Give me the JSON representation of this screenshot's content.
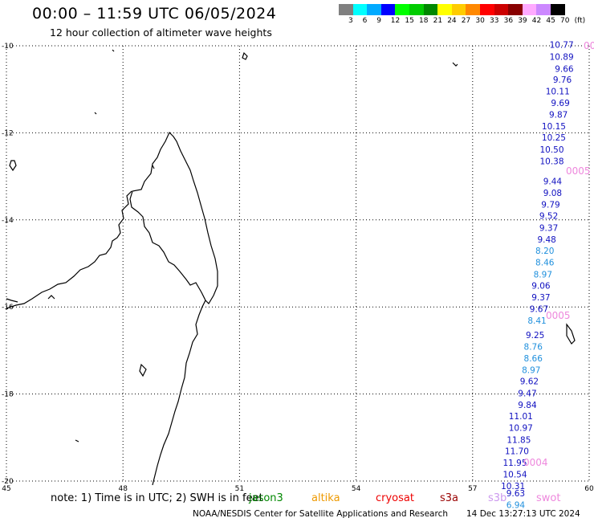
{
  "title": "00:00 – 11:59 UTC 06/05/2024",
  "subtitle": "12 hour collection of altimeter wave heights",
  "legend": {
    "colors": [
      "#808080",
      "#00ffff",
      "#00aaff",
      "#0000ff",
      "#00ff00",
      "#00cc00",
      "#008800",
      "#ffff00",
      "#ffcc00",
      "#ff8800",
      "#ff0000",
      "#cc0000",
      "#880000",
      "#ffaaff",
      "#cc88ff",
      "#000000"
    ],
    "labels": [
      "3",
      "6",
      "9",
      "12",
      "15",
      "18",
      "21",
      "24",
      "27",
      "30",
      "33",
      "36",
      "39",
      "42",
      "45",
      "70",
      "(ft)"
    ]
  },
  "map": {
    "lat_labels": [
      "-10",
      "-12",
      "-14",
      "-16",
      "-18",
      "-20"
    ],
    "lon_labels": [
      "45",
      "48",
      "51",
      "54",
      "57",
      "60"
    ],
    "pass_labels": [
      {
        "text": "0005",
        "color": "#ee88dd"
      },
      {
        "text": "0005",
        "color": "#ee88dd"
      },
      {
        "text": "0004",
        "color": "#ee88dd"
      },
      {
        "text": "00",
        "color": "#ee88dd"
      }
    ]
  },
  "chart_data": {
    "type": "scatter",
    "xlabel": "",
    "ylabel": "",
    "x_range": [
      45,
      60
    ],
    "y_range": [
      -20,
      -10
    ],
    "x_ticks": [
      "45",
      "48",
      "51",
      "54",
      "57",
      "60"
    ],
    "y_ticks": [
      "-10",
      "-12",
      "-14",
      "-16",
      "-18",
      "-20"
    ],
    "grid": true,
    "series": [
      {
        "name": "swot",
        "color": "#1010c0",
        "points": [
          {
            "lon": 59.6,
            "lat": -10.05,
            "v": "10.77"
          },
          {
            "lon": 59.6,
            "lat": -10.32,
            "v": "10.89"
          },
          {
            "lon": 59.6,
            "lat": -10.6,
            "v": "9.66"
          },
          {
            "lon": 59.55,
            "lat": -10.85,
            "v": "9.76"
          },
          {
            "lon": 59.5,
            "lat": -11.12,
            "v": "10.11"
          },
          {
            "lon": 59.5,
            "lat": -11.38,
            "v": "9.69"
          },
          {
            "lon": 59.45,
            "lat": -11.65,
            "v": "9.87"
          },
          {
            "lon": 59.4,
            "lat": -11.92,
            "v": "10.15"
          },
          {
            "lon": 59.4,
            "lat": -12.18,
            "v": "10.25"
          },
          {
            "lon": 59.35,
            "lat": -12.45,
            "v": "10.50"
          },
          {
            "lon": 59.35,
            "lat": -12.72,
            "v": "10.38"
          },
          {
            "lon": 59.3,
            "lat": -13.18,
            "v": "9.44"
          },
          {
            "lon": 59.3,
            "lat": -13.45,
            "v": "9.08"
          },
          {
            "lon": 59.25,
            "lat": -13.72,
            "v": "9.79"
          },
          {
            "lon": 59.2,
            "lat": -13.98,
            "v": "9.52"
          },
          {
            "lon": 59.2,
            "lat": -14.25,
            "v": "9.37"
          },
          {
            "lon": 59.15,
            "lat": -14.52,
            "v": "9.48"
          },
          {
            "lon": 59.1,
            "lat": -14.78,
            "v": "8.20"
          },
          {
            "lon": 59.1,
            "lat": -15.05,
            "v": "8.46"
          },
          {
            "lon": 59.05,
            "lat": -15.32,
            "v": "8.97"
          },
          {
            "lon": 59.0,
            "lat": -15.58,
            "v": "9.06"
          },
          {
            "lon": 59.0,
            "lat": -15.85,
            "v": "9.37"
          },
          {
            "lon": 58.95,
            "lat": -16.12,
            "v": "9.67"
          },
          {
            "lon": 58.9,
            "lat": -16.38,
            "v": "8.41"
          },
          {
            "lon": 58.85,
            "lat": -16.72,
            "v": "9.25"
          },
          {
            "lon": 58.8,
            "lat": -16.98,
            "v": "8.76"
          },
          {
            "lon": 58.8,
            "lat": -17.25,
            "v": "8.66"
          },
          {
            "lon": 58.75,
            "lat": -17.52,
            "v": "8.97"
          },
          {
            "lon": 58.7,
            "lat": -17.78,
            "v": "9.62"
          },
          {
            "lon": 58.65,
            "lat": -18.05,
            "v": "9.47"
          },
          {
            "lon": 58.65,
            "lat": -18.32,
            "v": "9.84"
          },
          {
            "lon": 58.55,
            "lat": -18.58,
            "v": "11.01"
          },
          {
            "lon": 58.55,
            "lat": -18.85,
            "v": "10.97"
          },
          {
            "lon": 58.5,
            "lat": -19.12,
            "v": "11.85"
          },
          {
            "lon": 58.45,
            "lat": -19.38,
            "v": "11.70"
          },
          {
            "lon": 58.4,
            "lat": -19.65,
            "v": "11.95"
          },
          {
            "lon": 58.4,
            "lat": -19.92,
            "v": "10.54"
          },
          {
            "lon": 58.35,
            "lat": -20.18,
            "v": "10.31"
          },
          {
            "lon": 58.35,
            "lat": -20.35,
            "v": "9.63"
          },
          {
            "lon": 58.35,
            "lat": -20.62,
            "v": "6.94"
          }
        ]
      }
    ]
  },
  "footer": {
    "note": "note:  1) Time is in UTC; 2) SWH is in feet",
    "satellites": [
      {
        "name": "jason3",
        "color": "#008800"
      },
      {
        "name": "altika",
        "color": "#ee9900"
      },
      {
        "name": "cryosat",
        "color": "#ee0000"
      },
      {
        "name": "s3a",
        "color": "#990000"
      },
      {
        "name": "s3b",
        "color": "#cc99ee"
      },
      {
        "name": "swot",
        "color": "#ee88dd"
      }
    ],
    "credit": "NOAA/NESDIS Center for Satellite Applications and Research",
    "credit_time": "14 Dec 13:27:13 UTC 2024"
  }
}
